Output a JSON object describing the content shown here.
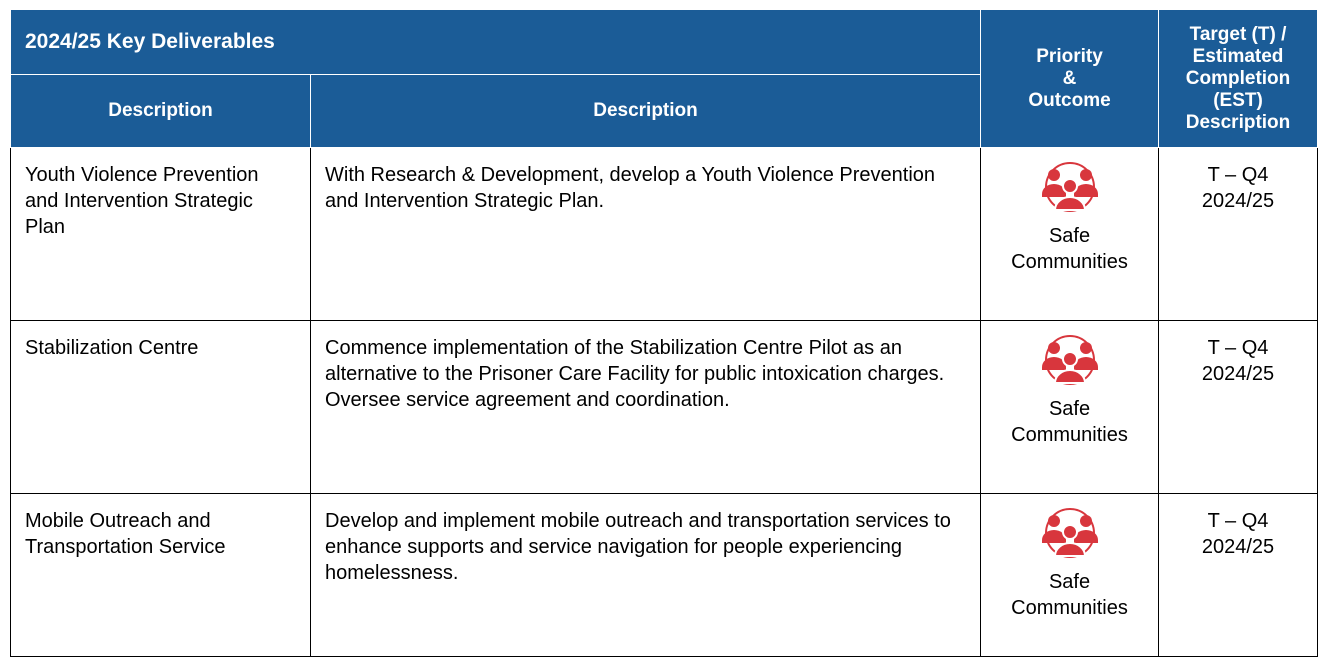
{
  "table": {
    "title": "2024/25 Key Deliverables",
    "headers": [
      "Description",
      "Description",
      [
        "Priority",
        "&",
        "Outcome"
      ],
      [
        "Target (T) /",
        "Estimated",
        "Completion",
        "(EST)",
        "Description"
      ]
    ],
    "rows": [
      [
        "Youth Violence Prevention and Intervention Strategic Plan",
        "With Research & Development, develop a Youth Violence Prevention and Intervention Strategic Plan.",
        "Safe Communities",
        "T – Q4 2024/25"
      ],
      [
        "Stabilization Centre",
        "Commence implementation of the Stabilization Centre Pilot as an alternative to the Prisoner Care Facility for public intoxication charges. Oversee service agreement and coordination.",
        "Safe Communities",
        "T – Q4 2024/25"
      ],
      [
        "Mobile Outreach and Transportation Service",
        "Develop and implement mobile outreach and transportation services to enhance supports and service navigation for people experiencing homelessness.",
        "Safe Communities",
        "T – Q4 2024/25"
      ]
    ]
  }
}
